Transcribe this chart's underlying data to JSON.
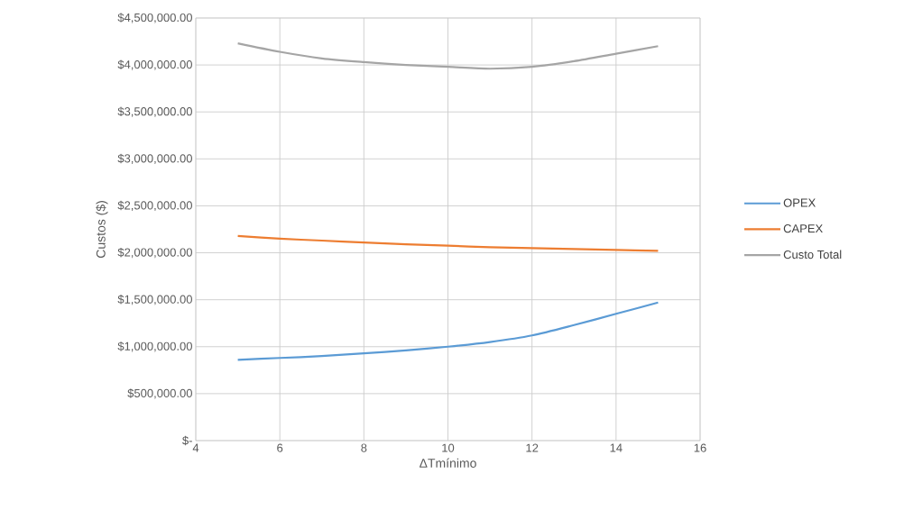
{
  "chart_data": {
    "type": "line",
    "xlabel": "ΔTmínimo",
    "ylabel": "Custos ($)",
    "x": [
      5,
      6,
      7,
      8,
      9,
      10,
      11,
      12,
      13,
      14,
      15
    ],
    "series": [
      {
        "name": "OPEX",
        "color": "#5b9bd5",
        "values": [
          860000,
          880000,
          900000,
          930000,
          960000,
          1000000,
          1050000,
          1120000,
          1230000,
          1350000,
          1470000
        ]
      },
      {
        "name": "CAPEX",
        "color": "#ed7d31",
        "values": [
          2180000,
          2150000,
          2130000,
          2110000,
          2090000,
          2075000,
          2060000,
          2050000,
          2040000,
          2030000,
          2020000
        ]
      },
      {
        "name": "Custo Total",
        "color": "#a5a5a5",
        "values": [
          4230000,
          4140000,
          4070000,
          4030000,
          4000000,
          3980000,
          3960000,
          3980000,
          4040000,
          4120000,
          4200000
        ]
      }
    ],
    "xlim": [
      4,
      16
    ],
    "xticks": [
      4,
      6,
      8,
      10,
      12,
      14,
      16
    ],
    "ylim": [
      0,
      4500000
    ],
    "yticks": [
      {
        "value": 0,
        "label": "$-"
      },
      {
        "value": 500000,
        "label": "$500,000.00"
      },
      {
        "value": 1000000,
        "label": "$1,000,000.00"
      },
      {
        "value": 1500000,
        "label": "$1,500,000.00"
      },
      {
        "value": 2000000,
        "label": "$2,000,000.00"
      },
      {
        "value": 2500000,
        "label": "$2,500,000.00"
      },
      {
        "value": 3000000,
        "label": "$3,000,000.00"
      },
      {
        "value": 3500000,
        "label": "$3,500,000.00"
      },
      {
        "value": 4000000,
        "label": "$4,000,000.00"
      },
      {
        "value": 4500000,
        "label": "$4,500,000.00"
      }
    ],
    "grid": true,
    "legend": "right"
  }
}
